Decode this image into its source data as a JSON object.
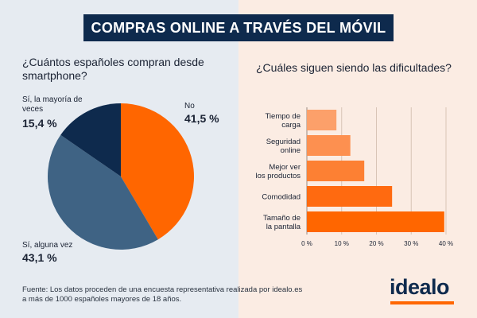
{
  "title": "COMPRAS ONLINE A TRAVÉS DEL MÓVIL",
  "colors": {
    "navy": "#0e2a4d",
    "steel": "#3f6384",
    "orange": "#ff6600",
    "left_bg": "#e6ebf1",
    "right_bg": "#fbece3"
  },
  "chart_data": [
    {
      "type": "pie",
      "title": "¿Cuántos españoles compran desde smartphone?",
      "slices": [
        {
          "label": "No",
          "value": 41.5,
          "value_label": "41,5 %",
          "color": "#ff6600"
        },
        {
          "label": "Sí, alguna vez",
          "value": 43.1,
          "value_label": "43,1 %",
          "color": "#3f6384"
        },
        {
          "label": "Sí, la mayoría de veces",
          "value": 15.4,
          "value_label": "15,4 %",
          "color": "#0e2a4d"
        }
      ]
    },
    {
      "type": "bar",
      "orientation": "horizontal",
      "title": "¿Cuáles siguen siendo las dificultades?",
      "categories": [
        "Tiempo de carga",
        "Seguridad online",
        "Mejor ver los productos",
        "Comodidad",
        "Tamaño de la pantalla"
      ],
      "values": [
        8.5,
        12.5,
        16.5,
        24.5,
        39.5
      ],
      "colors": [
        "#fca06a",
        "#fd9050",
        "#fd8033",
        "#ff6a10",
        "#ff6600"
      ],
      "xlim": [
        0,
        40
      ],
      "ticks": [
        0,
        10,
        20,
        30,
        40
      ],
      "tick_labels": [
        "0 %",
        "10 %",
        "20 %",
        "30 %",
        "40 %"
      ]
    }
  ],
  "footer": {
    "line1": "Fuente: Los datos proceden de una encuesta representativa realizada por idealo.es",
    "line2": "a más de 1000 españoles mayores de 18 años."
  },
  "logo": "idealo"
}
